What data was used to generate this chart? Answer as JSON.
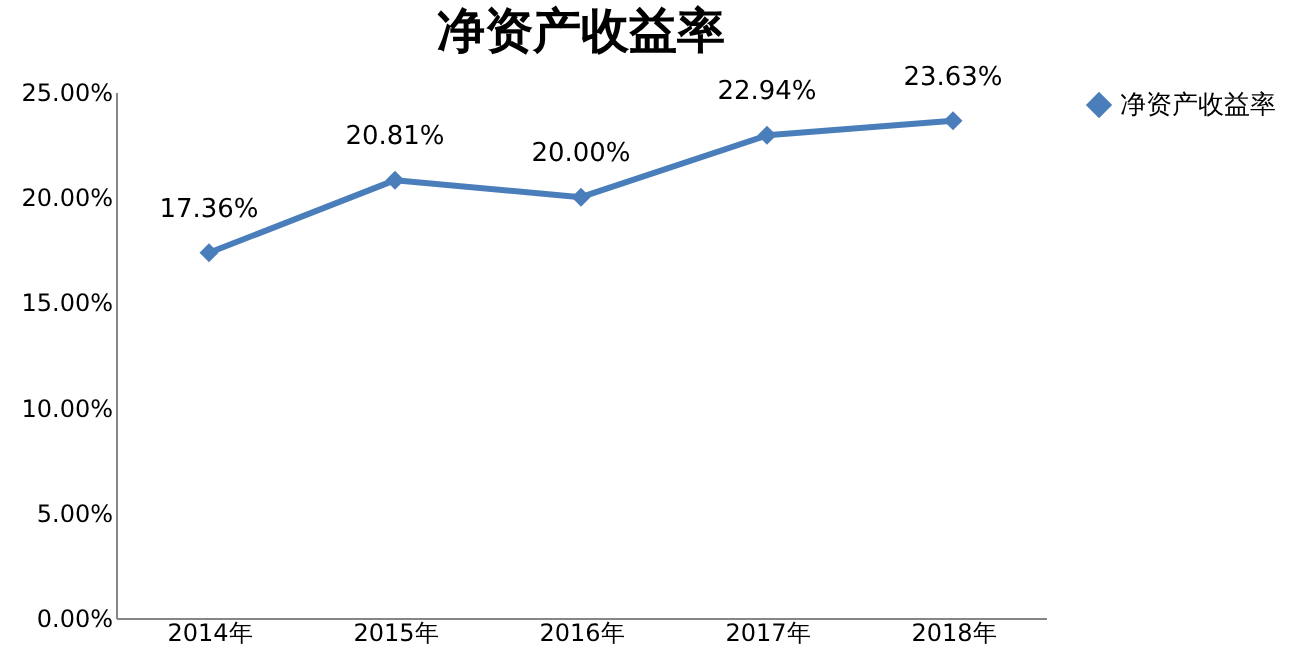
{
  "chart_data": {
    "type": "line",
    "title": "净资产收益率",
    "categories": [
      "2014年",
      "2015年",
      "2016年",
      "2017年",
      "2018年"
    ],
    "series": [
      {
        "name": "净资产收益率",
        "color": "#4a7ebb",
        "values": [
          17.36,
          20.81,
          20.0,
          22.94,
          23.63
        ],
        "value_labels": [
          "17.36%",
          "20.81%",
          "20.00%",
          "22.94%",
          "23.63%"
        ]
      }
    ],
    "ylim": [
      0,
      25
    ],
    "yticks": [
      {
        "value": 0,
        "label": "0.00%"
      },
      {
        "value": 5,
        "label": "5.00%"
      },
      {
        "value": 10,
        "label": "10.00%"
      },
      {
        "value": 15,
        "label": "15.00%"
      },
      {
        "value": 20,
        "label": "20.00%"
      },
      {
        "value": 25,
        "label": "25.00%"
      }
    ],
    "grid": false,
    "legend": "right",
    "marker": "diamond",
    "line_style": "solid"
  }
}
